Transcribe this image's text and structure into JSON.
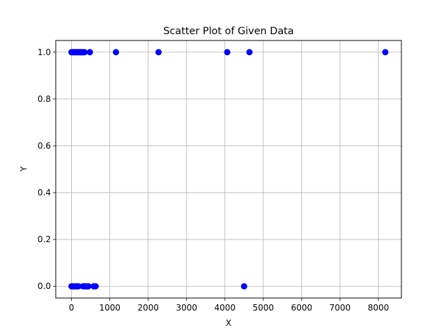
{
  "chart_data": {
    "type": "scatter",
    "title": "Scatter Plot of Given Data",
    "xlabel": "X",
    "ylabel": "Y",
    "xlim": [
      -410,
      8600
    ],
    "ylim": [
      -0.05,
      1.05
    ],
    "xticks": [
      0,
      1000,
      2000,
      3000,
      4000,
      5000,
      6000,
      7000,
      8000
    ],
    "xtick_labels": [
      "0",
      "1000",
      "2000",
      "3000",
      "4000",
      "5000",
      "6000",
      "7000",
      "8000"
    ],
    "yticks": [
      0.0,
      0.2,
      0.4,
      0.6,
      0.8,
      1.0
    ],
    "ytick_labels": [
      "0.0",
      "0.2",
      "0.4",
      "0.6",
      "0.8",
      "1.0"
    ],
    "grid": true,
    "marker_color": "#0000ff",
    "series": [
      {
        "x": [
          0,
          20,
          40,
          60,
          80,
          100,
          120,
          140,
          160,
          180,
          200,
          220,
          240,
          260,
          280,
          300,
          320,
          340,
          480,
          1160,
          2270,
          4060,
          4640,
          8180,
          0,
          20,
          40,
          60,
          90,
          120,
          150,
          180,
          300,
          330,
          360,
          390,
          420,
          440,
          580,
          600,
          630,
          4500
        ],
        "y": [
          1,
          1,
          1,
          1,
          1,
          1,
          1,
          1,
          1,
          1,
          1,
          1,
          1,
          1,
          1,
          1,
          1,
          1,
          1,
          1,
          1,
          1,
          1,
          1,
          0,
          0,
          0,
          0,
          0,
          0,
          0,
          0,
          0,
          0,
          0,
          0,
          0,
          0,
          0,
          0,
          0,
          0
        ]
      }
    ]
  }
}
